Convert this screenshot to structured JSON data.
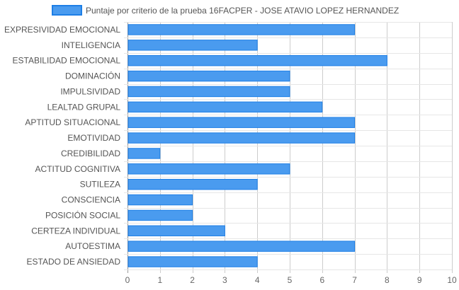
{
  "chart_data": {
    "type": "bar",
    "orientation": "horizontal",
    "categories": [
      "EXPRESIVIDAD EMOCIONAL",
      "INTELIGENCIA",
      "ESTABILIDAD EMOCIONAL",
      "DOMINACIÓN",
      "IMPULSIVIDAD",
      "LEALTAD GRUPAL",
      "APTITUD SITUACIONAL",
      "EMOTIVIDAD",
      "CREDIBILIDAD",
      "ACTITUD COGNITIVA",
      "SUTILEZA",
      "CONSCIENCIA",
      "POSICIÓN SOCIAL",
      "CERTEZA INDIVIDUAL",
      "AUTOESTIMA",
      "ESTADO DE ANSIEDAD"
    ],
    "series": [
      {
        "name": "Puntaje por criterio de la prueba 16FACPER - JOSE ATAVIO LOPEZ HERNANDEZ",
        "values": [
          7,
          4,
          8,
          5,
          5,
          6,
          7,
          7,
          1,
          5,
          4,
          2,
          2,
          3,
          7,
          4
        ],
        "color": "#4a9bef",
        "border_color": "#1e7fe6"
      }
    ],
    "xlim": [
      0,
      10
    ],
    "xticks": [
      "0",
      "1",
      "2",
      "3",
      "4",
      "5",
      "6",
      "7",
      "8",
      "9",
      "10"
    ],
    "grid": true,
    "legend_position": "top"
  }
}
